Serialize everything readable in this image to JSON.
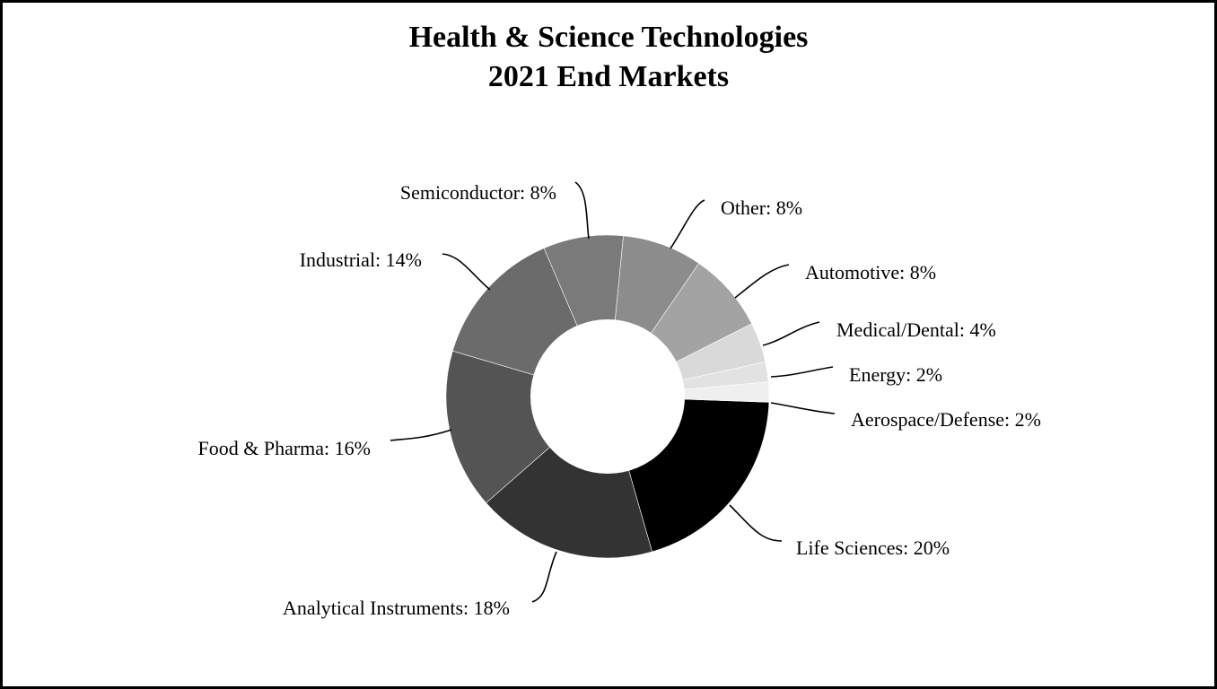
{
  "chart_data": {
    "type": "pie",
    "donut": true,
    "title_lines": [
      "Health & Science Technologies",
      "2021 End Markets"
    ],
    "slices": [
      {
        "label": "Life Sciences: 20%",
        "value": 20,
        "color": "#000000"
      },
      {
        "label": "Analytical Instruments: 18%",
        "value": 18,
        "color": "#333333"
      },
      {
        "label": "Food & Pharma: 16%",
        "value": 16,
        "color": "#545454"
      },
      {
        "label": "Industrial: 14%",
        "value": 14,
        "color": "#6b6b6b"
      },
      {
        "label": "Semiconductor: 8%",
        "value": 8,
        "color": "#7a7a7a"
      },
      {
        "label": "Other: 8%",
        "value": 8,
        "color": "#8c8c8c"
      },
      {
        "label": "Automotive: 8%",
        "value": 8,
        "color": "#a3a3a3"
      },
      {
        "label": "Medical/Dental: 4%",
        "value": 4,
        "color": "#d9d9d9"
      },
      {
        "label": "Energy: 2%",
        "value": 2,
        "color": "#e2e2e2"
      },
      {
        "label": "Aerospace/Defense: 2%",
        "value": 2,
        "color": "#efefef"
      }
    ],
    "legend": "none"
  }
}
